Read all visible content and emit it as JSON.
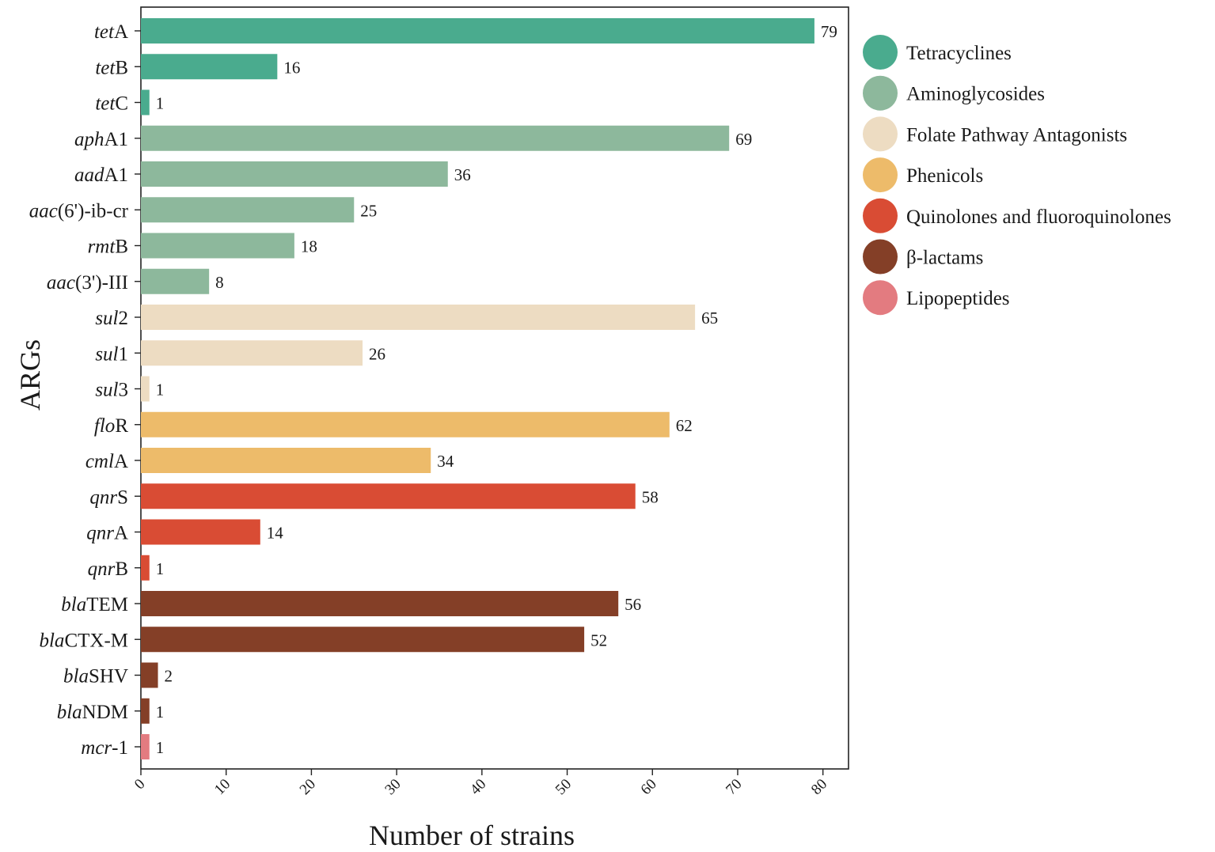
{
  "chart_data": {
    "type": "bar",
    "orientation": "horizontal",
    "xlabel": "Number of strains",
    "ylabel": "ARGs",
    "xlim": [
      0,
      83
    ],
    "xticks": [
      0,
      10,
      20,
      30,
      40,
      50,
      60,
      70,
      80
    ],
    "legend_position": "right",
    "groups": [
      {
        "name": "Tetracyclines",
        "color": "#4aab8e"
      },
      {
        "name": "Aminoglycosides",
        "color": "#8db89c"
      },
      {
        "name": "Folate Pathway Antagonists",
        "color": "#eddcc2"
      },
      {
        "name": "Phenicols",
        "color": "#edbb6a"
      },
      {
        "name": "Quinolones and fluoroquinolones",
        "color": "#d94c34"
      },
      {
        "name": "β-lactams",
        "color": "#843f27"
      },
      {
        "name": "Lipopeptides",
        "color": "#e37b80"
      }
    ],
    "bars": [
      {
        "gene_italic": "tet",
        "gene_suffix": "A",
        "value": 79,
        "group": 0
      },
      {
        "gene_italic": "tet",
        "gene_suffix": "B",
        "value": 16,
        "group": 0
      },
      {
        "gene_italic": "tet",
        "gene_suffix": "C",
        "value": 1,
        "group": 0
      },
      {
        "gene_italic": "aph",
        "gene_suffix": "A1",
        "value": 69,
        "group": 1
      },
      {
        "gene_italic": "aad",
        "gene_suffix": "A1",
        "value": 36,
        "group": 1
      },
      {
        "gene_italic": "aac",
        "gene_suffix": "(6')-ib-cr",
        "value": 25,
        "group": 1
      },
      {
        "gene_italic": "rmt",
        "gene_suffix": "B",
        "value": 18,
        "group": 1
      },
      {
        "gene_italic": "aac",
        "gene_suffix": "(3')-III",
        "value": 8,
        "group": 1
      },
      {
        "gene_italic": "sul",
        "gene_suffix": "2",
        "value": 65,
        "group": 2
      },
      {
        "gene_italic": "sul",
        "gene_suffix": "1",
        "value": 26,
        "group": 2
      },
      {
        "gene_italic": "sul",
        "gene_suffix": "3",
        "value": 1,
        "group": 2
      },
      {
        "gene_italic": "flo",
        "gene_suffix": "R",
        "value": 62,
        "group": 3
      },
      {
        "gene_italic": "cml",
        "gene_suffix": "A",
        "value": 34,
        "group": 3
      },
      {
        "gene_italic": "qnr",
        "gene_suffix": "S",
        "value": 58,
        "group": 4
      },
      {
        "gene_italic": "qnr",
        "gene_suffix": "A",
        "value": 14,
        "group": 4
      },
      {
        "gene_italic": "qnr",
        "gene_suffix": "B",
        "value": 1,
        "group": 4
      },
      {
        "gene_italic": "bla",
        "gene_suffix": "TEM",
        "value": 56,
        "group": 5
      },
      {
        "gene_italic": "bla",
        "gene_suffix": "CTX-M",
        "value": 52,
        "group": 5
      },
      {
        "gene_italic": "bla",
        "gene_suffix": "SHV",
        "value": 2,
        "group": 5
      },
      {
        "gene_italic": "bla",
        "gene_suffix": "NDM",
        "value": 1,
        "group": 5
      },
      {
        "gene_italic": "mcr",
        "gene_suffix": "-1",
        "value": 1,
        "group": 6
      }
    ]
  }
}
